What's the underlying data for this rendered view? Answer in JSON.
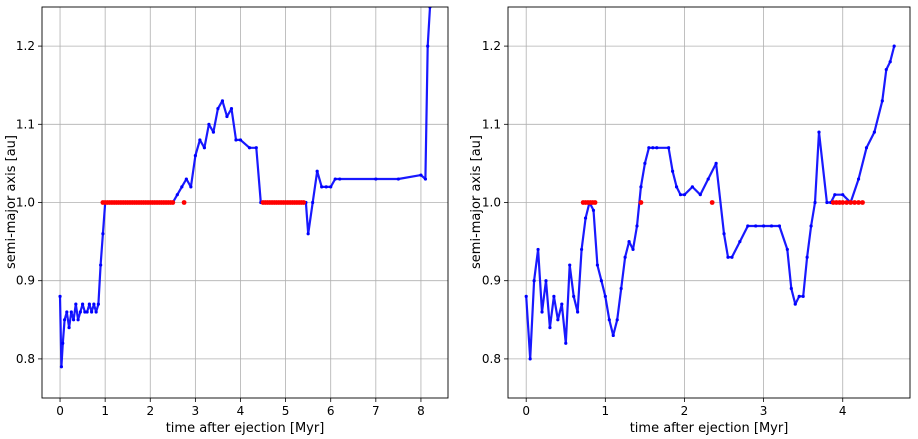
{
  "chart_data": [
    {
      "type": "scatter",
      "xlabel": "time after ejection [Myr]",
      "ylabel": "semi-major axis [au]",
      "xlim": [
        -0.4,
        8.6
      ],
      "ylim": [
        0.75,
        1.25
      ],
      "xticks": [
        "0",
        "1",
        "2",
        "3",
        "4",
        "5",
        "6",
        "7",
        "8"
      ],
      "xtick_values": [
        0,
        1,
        2,
        3,
        4,
        5,
        6,
        7,
        8
      ],
      "yticks": [
        "0.8",
        "0.9",
        "1.0",
        "1.1",
        "1.2"
      ],
      "ytick_values": [
        0.8,
        0.9,
        1.0,
        1.1,
        1.2
      ],
      "grid": true,
      "colors": {
        "trace": "#0000ff",
        "marker": "#ff0000"
      },
      "series": [
        {
          "style": "dense-trace",
          "x": [
            0.0,
            0.03,
            0.06,
            0.1,
            0.15,
            0.2,
            0.25,
            0.3,
            0.35,
            0.4,
            0.45,
            0.5,
            0.55,
            0.6,
            0.65,
            0.7,
            0.75,
            0.8,
            0.85,
            0.9,
            0.95,
            1.0,
            1.5,
            2.0,
            2.4,
            2.5,
            2.6,
            2.7,
            2.8,
            2.9,
            3.0,
            3.1,
            3.2,
            3.3,
            3.4,
            3.5,
            3.6,
            3.7,
            3.8,
            3.9,
            4.0,
            4.2,
            4.35,
            4.45,
            4.5,
            5.0,
            5.45,
            5.5,
            5.6,
            5.7,
            5.8,
            5.9,
            6.0,
            6.1,
            6.2,
            7.0,
            7.5,
            8.0,
            8.1,
            8.15,
            8.2
          ],
          "y": [
            0.88,
            0.79,
            0.82,
            0.85,
            0.86,
            0.84,
            0.86,
            0.85,
            0.87,
            0.85,
            0.86,
            0.87,
            0.86,
            0.86,
            0.87,
            0.86,
            0.87,
            0.86,
            0.87,
            0.92,
            0.96,
            1.0,
            1.0,
            1.0,
            1.0,
            1.0,
            1.01,
            1.02,
            1.03,
            1.02,
            1.06,
            1.08,
            1.07,
            1.1,
            1.09,
            1.12,
            1.13,
            1.11,
            1.12,
            1.08,
            1.08,
            1.07,
            1.07,
            1.0,
            1.0,
            1.0,
            1.0,
            0.96,
            1.0,
            1.04,
            1.02,
            1.02,
            1.02,
            1.03,
            1.03,
            1.03,
            1.03,
            1.035,
            1.03,
            1.2,
            1.25
          ]
        },
        {
          "style": "markers",
          "x": [
            0.95,
            1.0,
            1.05,
            1.1,
            1.15,
            1.2,
            1.25,
            1.3,
            1.35,
            1.4,
            1.45,
            1.5,
            1.55,
            1.6,
            1.65,
            1.7,
            1.75,
            1.8,
            1.85,
            1.9,
            1.95,
            2.0,
            2.05,
            2.1,
            2.15,
            2.2,
            2.25,
            2.3,
            2.35,
            2.4,
            2.45,
            2.5,
            2.75,
            4.5,
            4.55,
            4.6,
            4.65,
            4.7,
            4.75,
            4.8,
            4.85,
            4.9,
            4.95,
            5.0,
            5.05,
            5.1,
            5.15,
            5.2,
            5.25,
            5.3,
            5.35,
            5.4
          ],
          "y": [
            1.0,
            1.0,
            1.0,
            1.0,
            1.0,
            1.0,
            1.0,
            1.0,
            1.0,
            1.0,
            1.0,
            1.0,
            1.0,
            1.0,
            1.0,
            1.0,
            1.0,
            1.0,
            1.0,
            1.0,
            1.0,
            1.0,
            1.0,
            1.0,
            1.0,
            1.0,
            1.0,
            1.0,
            1.0,
            1.0,
            1.0,
            1.0,
            1.0,
            1.0,
            1.0,
            1.0,
            1.0,
            1.0,
            1.0,
            1.0,
            1.0,
            1.0,
            1.0,
            1.0,
            1.0,
            1.0,
            1.0,
            1.0,
            1.0,
            1.0,
            1.0,
            1.0
          ]
        }
      ]
    },
    {
      "type": "scatter",
      "xlabel": "time after ejection [Myr]",
      "ylabel": "semi-major axis [au]",
      "xlim": [
        -0.23,
        4.85
      ],
      "ylim": [
        0.75,
        1.25
      ],
      "xticks": [
        "0",
        "1",
        "2",
        "3",
        "4"
      ],
      "xtick_values": [
        0,
        1,
        2,
        3,
        4
      ],
      "yticks": [
        "0.8",
        "0.9",
        "1.0",
        "1.1",
        "1.2"
      ],
      "ytick_values": [
        0.8,
        0.9,
        1.0,
        1.1,
        1.2
      ],
      "grid": true,
      "colors": {
        "trace": "#0000ff",
        "marker": "#ff0000"
      },
      "series": [
        {
          "style": "dense-trace",
          "x": [
            0.0,
            0.05,
            0.1,
            0.15,
            0.2,
            0.25,
            0.3,
            0.35,
            0.4,
            0.45,
            0.5,
            0.55,
            0.6,
            0.65,
            0.7,
            0.75,
            0.8,
            0.85,
            0.9,
            0.95,
            1.0,
            1.05,
            1.1,
            1.15,
            1.2,
            1.25,
            1.3,
            1.35,
            1.4,
            1.45,
            1.5,
            1.55,
            1.6,
            1.65,
            1.8,
            1.85,
            1.9,
            1.95,
            2.0,
            2.1,
            2.2,
            2.3,
            2.4,
            2.5,
            2.55,
            2.6,
            2.7,
            2.8,
            2.9,
            3.0,
            3.1,
            3.2,
            3.3,
            3.35,
            3.4,
            3.45,
            3.5,
            3.55,
            3.6,
            3.65,
            3.7,
            3.8,
            3.85,
            3.9,
            4.0,
            4.1,
            4.2,
            4.3,
            4.4,
            4.5,
            4.55,
            4.6,
            4.65
          ],
          "y": [
            0.88,
            0.8,
            0.9,
            0.94,
            0.86,
            0.9,
            0.84,
            0.88,
            0.85,
            0.87,
            0.82,
            0.92,
            0.88,
            0.86,
            0.94,
            0.98,
            1.0,
            0.99,
            0.92,
            0.9,
            0.88,
            0.85,
            0.83,
            0.85,
            0.89,
            0.93,
            0.95,
            0.94,
            0.97,
            1.02,
            1.05,
            1.07,
            1.07,
            1.07,
            1.07,
            1.04,
            1.02,
            1.01,
            1.01,
            1.02,
            1.01,
            1.03,
            1.05,
            0.96,
            0.93,
            0.93,
            0.95,
            0.97,
            0.97,
            0.97,
            0.97,
            0.97,
            0.94,
            0.89,
            0.87,
            0.88,
            0.88,
            0.93,
            0.97,
            1.0,
            1.09,
            1.0,
            1.0,
            1.01,
            1.01,
            1.0,
            1.03,
            1.07,
            1.09,
            1.13,
            1.17,
            1.18,
            1.2
          ]
        },
        {
          "style": "markers",
          "x": [
            0.72,
            0.75,
            0.78,
            0.81,
            0.84,
            0.87,
            1.45,
            2.35,
            3.88,
            3.92,
            3.96,
            4.0,
            4.05,
            4.1,
            4.15,
            4.2,
            4.25
          ],
          "y": [
            1.0,
            1.0,
            1.0,
            1.0,
            1.0,
            1.0,
            1.0,
            1.0,
            1.0,
            1.0,
            1.0,
            1.0,
            1.0,
            1.0,
            1.0,
            1.0,
            1.0
          ]
        }
      ]
    }
  ]
}
